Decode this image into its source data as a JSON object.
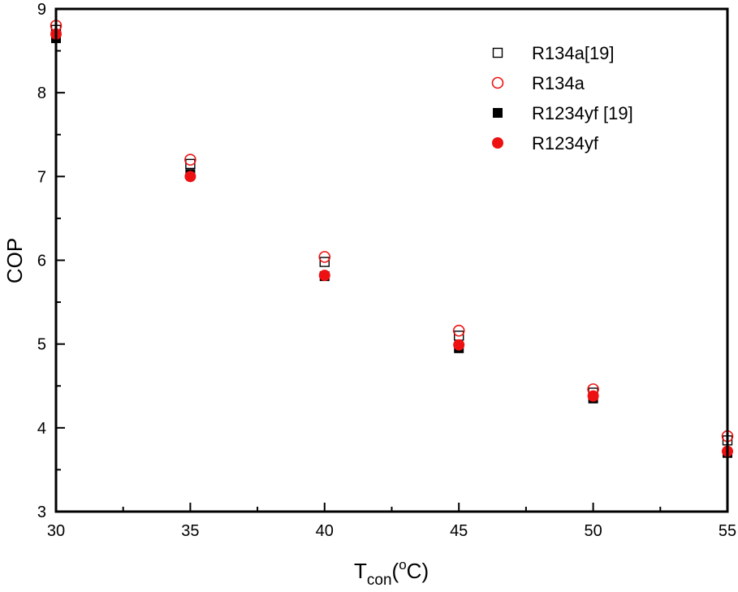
{
  "chart_data": {
    "type": "scatter",
    "title": "",
    "xlabel": {
      "main": "T",
      "sub": "con",
      "paren_open": "(",
      "sup": "o",
      "unit": "C)"
    },
    "ylabel": "COP",
    "xlim": [
      30,
      55
    ],
    "ylim": [
      3,
      9
    ],
    "xticks": [
      30,
      35,
      40,
      45,
      50,
      55
    ],
    "yticks": [
      3,
      4,
      5,
      6,
      7,
      8,
      9
    ],
    "x_minor_step": 2.5,
    "y_minor_step": 0.5,
    "grid": false,
    "legend_position": "top-right",
    "x": [
      30,
      35,
      40,
      45,
      50,
      55
    ],
    "series": [
      {
        "name": "R134a[19]",
        "marker": "square-open",
        "color": "#000000",
        "values": [
          8.75,
          7.15,
          5.98,
          5.1,
          4.42,
          3.85
        ]
      },
      {
        "name": "R134a",
        "marker": "circle-open",
        "color": "#ee1111",
        "values": [
          8.8,
          7.2,
          6.04,
          5.16,
          4.46,
          3.9
        ]
      },
      {
        "name": "R1234yf [19]",
        "marker": "square-filled",
        "color": "#000000",
        "values": [
          8.65,
          7.03,
          5.81,
          4.95,
          4.35,
          3.7
        ]
      },
      {
        "name": "R1234yf",
        "marker": "circle-filled",
        "color": "#ee1111",
        "values": [
          8.7,
          7.0,
          5.82,
          4.99,
          4.38,
          3.72
        ]
      }
    ]
  }
}
